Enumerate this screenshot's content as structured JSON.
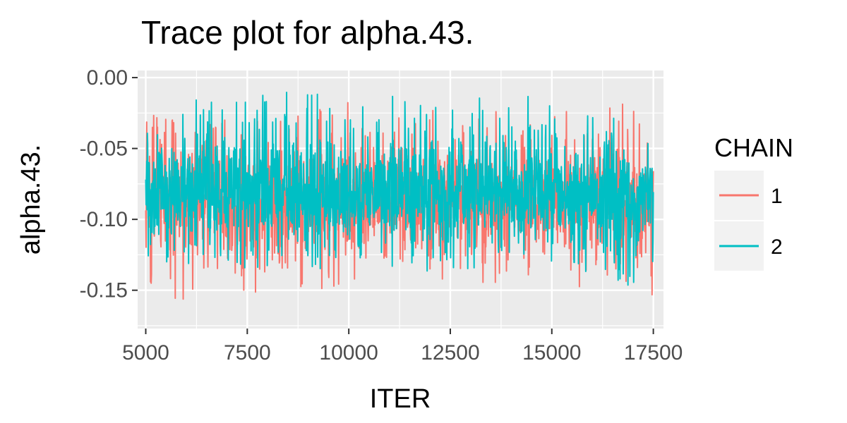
{
  "chart_data": {
    "type": "line",
    "title": "Trace plot for alpha.43.",
    "xlabel": "ITER",
    "ylabel": "alpha.43.",
    "xlim": [
      4800,
      17750
    ],
    "ylim": [
      -0.177,
      0.005
    ],
    "x_ticks": [
      5000,
      7500,
      10000,
      12500,
      15000,
      17500
    ],
    "x_tick_labels": [
      "5000",
      "7500",
      "10000",
      "12500",
      "15000",
      "17500"
    ],
    "y_ticks": [
      0.0,
      -0.05,
      -0.1,
      -0.15
    ],
    "y_tick_labels": [
      "0.00",
      "-0.05",
      "-0.10",
      "-0.15"
    ],
    "grid": true,
    "legend": {
      "title": "CHAIN",
      "placement": "right"
    },
    "series": [
      {
        "name": "1",
        "color": "#F8766D",
        "x": [
          5000,
          5500,
          6000,
          6500,
          7000,
          7500,
          8000,
          8500,
          9000,
          9500,
          10000,
          10500,
          11000,
          11500,
          12000,
          12500,
          13000,
          13500,
          14000,
          14500,
          15000,
          15500,
          16000,
          16500,
          17000,
          17500
        ],
        "y_mean": [
          -0.085,
          -0.084,
          -0.086,
          -0.083,
          -0.085,
          -0.084,
          -0.083,
          -0.085,
          -0.084,
          -0.086,
          -0.083,
          -0.084,
          -0.085,
          -0.083,
          -0.086,
          -0.085,
          -0.084,
          -0.083,
          -0.085,
          -0.084,
          -0.084,
          -0.085,
          -0.083,
          -0.084,
          -0.085,
          -0.086
        ],
        "y_min": [
          -0.163,
          -0.15,
          -0.163,
          -0.148,
          -0.152,
          -0.16,
          -0.14,
          -0.152,
          -0.148,
          -0.155,
          -0.145,
          -0.15,
          -0.142,
          -0.15,
          -0.145,
          -0.17,
          -0.14,
          -0.152,
          -0.15,
          -0.148,
          -0.14,
          -0.15,
          -0.148,
          -0.145,
          -0.15,
          -0.158
        ],
        "y_max": [
          -0.022,
          -0.02,
          -0.03,
          -0.032,
          -0.028,
          -0.022,
          -0.03,
          -0.025,
          -0.02,
          -0.018,
          -0.01,
          -0.02,
          -0.022,
          -0.028,
          -0.022,
          -0.03,
          -0.025,
          -0.018,
          -0.028,
          -0.02,
          -0.015,
          -0.025,
          -0.03,
          -0.012,
          -0.02,
          -0.045
        ]
      },
      {
        "name": "2",
        "color": "#00BFC4",
        "x": [
          5000,
          5500,
          6000,
          6500,
          7000,
          7500,
          8000,
          8500,
          9000,
          9500,
          10000,
          10500,
          11000,
          11500,
          12000,
          12500,
          13000,
          13500,
          14000,
          14500,
          15000,
          15500,
          16000,
          16500,
          17000,
          17500
        ],
        "y_mean": [
          -0.082,
          -0.083,
          -0.081,
          -0.082,
          -0.083,
          -0.082,
          -0.081,
          -0.083,
          -0.082,
          -0.081,
          -0.083,
          -0.082,
          -0.081,
          -0.082,
          -0.083,
          -0.082,
          -0.081,
          -0.082,
          -0.083,
          -0.082,
          -0.08,
          -0.082,
          -0.083,
          -0.081,
          -0.082,
          -0.083
        ],
        "y_min": [
          -0.133,
          -0.13,
          -0.133,
          -0.128,
          -0.135,
          -0.135,
          -0.135,
          -0.13,
          -0.145,
          -0.13,
          -0.14,
          -0.132,
          -0.135,
          -0.13,
          -0.14,
          -0.138,
          -0.135,
          -0.14,
          -0.135,
          -0.14,
          -0.13,
          -0.137,
          -0.14,
          -0.14,
          -0.155,
          -0.145
        ],
        "y_max": [
          -0.04,
          -0.008,
          -0.012,
          -0.018,
          -0.015,
          -0.01,
          -0.012,
          -0.01,
          -0.012,
          -0.005,
          -0.008,
          -0.015,
          -0.01,
          -0.012,
          -0.02,
          -0.01,
          -0.012,
          -0.015,
          -0.018,
          -0.01,
          -0.008,
          -0.012,
          -0.028,
          -0.018,
          -0.03,
          -0.04
        ]
      }
    ]
  }
}
